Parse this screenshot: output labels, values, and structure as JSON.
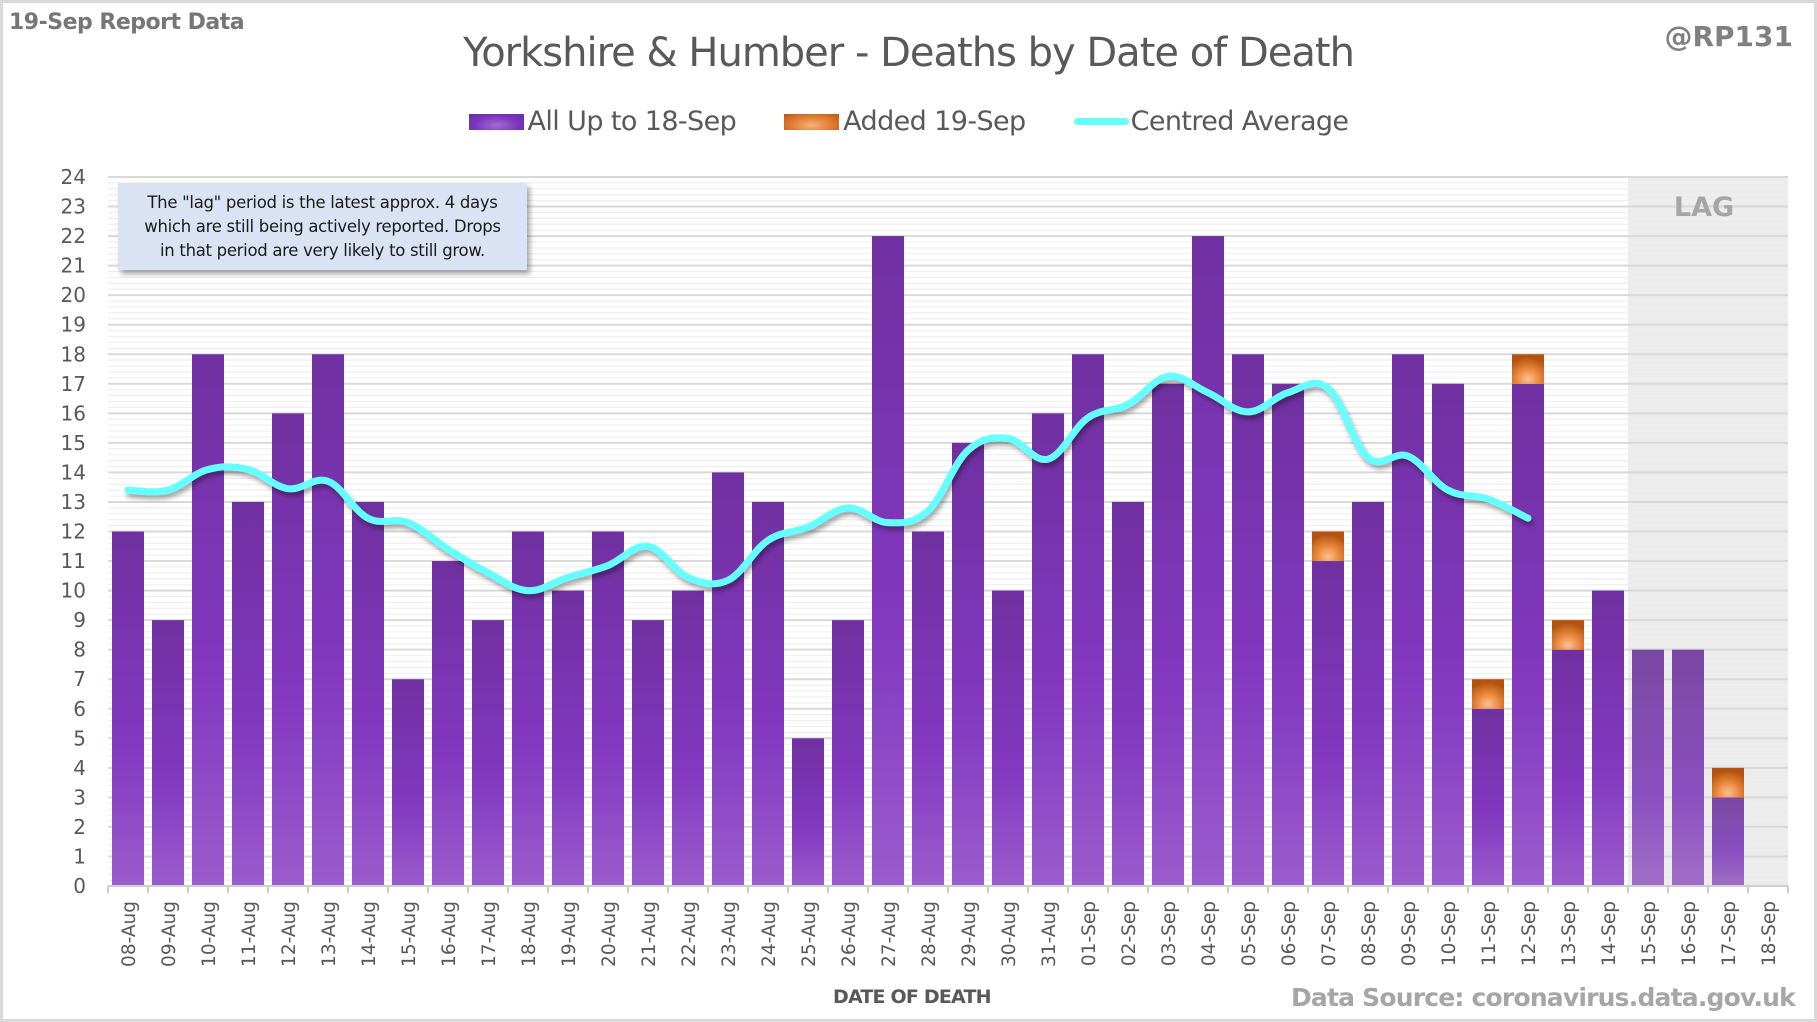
{
  "header": {
    "report_label": "19-Sep Report Data",
    "handle": "@RP131"
  },
  "note": {
    "lines": [
      "The \"lag\" period is the latest approx. 4 days",
      "which are still being actively reported.  Drops",
      "in that period are very likely to still grow."
    ]
  },
  "lag_label": "LAG",
  "source": "Data Source: coronavirus.data.gov.uk",
  "colors": {
    "bar_purple": "#7a34b8",
    "bar_orange": "#e07a30",
    "line_cyan": "#66ffff",
    "lag_shade": "#ececec",
    "grid": "#d9d9d9"
  },
  "chart_data": {
    "type": "bar",
    "stacked": true,
    "title": "Yorkshire & Humber - Deaths by Date of Death",
    "xlabel": "DATE OF DEATH",
    "ylabel": "",
    "ylim": [
      0,
      24
    ],
    "yticks": [
      0,
      1,
      2,
      3,
      4,
      5,
      6,
      7,
      8,
      9,
      10,
      11,
      12,
      13,
      14,
      15,
      16,
      17,
      18,
      19,
      20,
      21,
      22,
      23,
      24
    ],
    "grid": true,
    "legend_position": "top-center",
    "lag_categories": [
      "15-Sep",
      "16-Sep",
      "17-Sep",
      "18-Sep"
    ],
    "categories": [
      "08-Aug",
      "09-Aug",
      "10-Aug",
      "11-Aug",
      "12-Aug",
      "13-Aug",
      "14-Aug",
      "15-Aug",
      "16-Aug",
      "17-Aug",
      "18-Aug",
      "19-Aug",
      "20-Aug",
      "21-Aug",
      "22-Aug",
      "23-Aug",
      "24-Aug",
      "25-Aug",
      "26-Aug",
      "27-Aug",
      "28-Aug",
      "29-Aug",
      "30-Aug",
      "31-Aug",
      "01-Sep",
      "02-Sep",
      "03-Sep",
      "04-Sep",
      "05-Sep",
      "06-Sep",
      "07-Sep",
      "08-Sep",
      "09-Sep",
      "10-Sep",
      "11-Sep",
      "12-Sep",
      "13-Sep",
      "14-Sep",
      "15-Sep",
      "16-Sep",
      "17-Sep",
      "18-Sep"
    ],
    "series": [
      {
        "name": "All Up to 18-Sep",
        "kind": "bar",
        "values": [
          12,
          9,
          18,
          13,
          16,
          18,
          13,
          7,
          11,
          9,
          12,
          10,
          12,
          9,
          10,
          14,
          13,
          5,
          9,
          22,
          12,
          15,
          10,
          16,
          18,
          13,
          17,
          22,
          18,
          17,
          11,
          13,
          18,
          17,
          6,
          17,
          8,
          10,
          8,
          8,
          3,
          0
        ]
      },
      {
        "name": "Added 19-Sep",
        "kind": "bar",
        "values": [
          0,
          0,
          0,
          0,
          0,
          0,
          0,
          0,
          0,
          0,
          0,
          0,
          0,
          0,
          0,
          0,
          0,
          0,
          0,
          0,
          0,
          0,
          0,
          0,
          0,
          0,
          0,
          0,
          0,
          0,
          1,
          0,
          0,
          0,
          1,
          1,
          1,
          0,
          0,
          0,
          1,
          0
        ]
      },
      {
        "name": "Centred Average",
        "kind": "line",
        "values": [
          13.4,
          13.4,
          14.1,
          14.1,
          13.45,
          13.7,
          12.45,
          12.3,
          11.4,
          10.6,
          10.0,
          10.45,
          10.85,
          11.5,
          10.45,
          10.35,
          11.7,
          12.15,
          12.8,
          12.3,
          12.7,
          14.75,
          15.15,
          14.45,
          15.85,
          16.3,
          17.25,
          16.7,
          16.05,
          16.7,
          16.85,
          14.5,
          14.55,
          13.4,
          13.1,
          12.45,
          null,
          null,
          null,
          null,
          null,
          null
        ]
      }
    ]
  }
}
